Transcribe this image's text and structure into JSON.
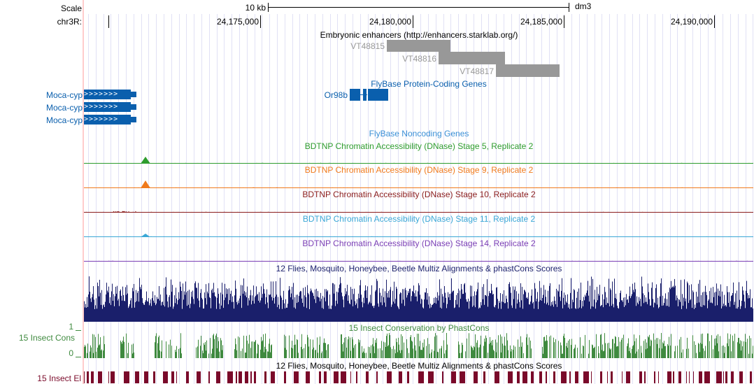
{
  "colors": {
    "grid": "#e1e1f5",
    "gene_blue": "#0a5fad",
    "enhancer_gray": "#989898",
    "stage5": "#2e9c2e",
    "stage9": "#f07a1c",
    "stage10": "#8a1c1c",
    "stage11": "#3aa7d6",
    "stage14": "#7b3fb5",
    "multiz": "#1a1f6b",
    "phastcons": "#3f8a3f",
    "elements": "#7a0a2a",
    "red_guide": "#ffcccc"
  },
  "ruler": {
    "scale_label": "Scale",
    "chrom_label": "chr3R:",
    "scale_bar_text": "10 kb",
    "assembly": "dm3",
    "positions": [
      "24,175,000",
      "24,180,000",
      "24,185,000",
      "24,190,000"
    ]
  },
  "tracks": {
    "enhancers": {
      "title": "Embryonic enhancers (http://enhancers.starklab.org/)",
      "items": [
        "VT48815",
        "VT48816",
        "VT48817"
      ]
    },
    "protein_coding": {
      "title": "FlyBase Protein-Coding Genes",
      "left_genes": [
        "Moca-cyp",
        "Moca-cyp",
        "Moca-cyp"
      ],
      "gene": "Or98b"
    },
    "noncoding": {
      "title": "FlyBase Noncoding Genes"
    },
    "dnase": [
      {
        "key": "s5",
        "title": "BDTNP Chromatin Accessibility (DNase) Stage 5, Replicate 2",
        "color": "#2e9c2e"
      },
      {
        "key": "s9",
        "title": "BDTNP Chromatin Accessibility (DNase) Stage 9, Replicate 2",
        "color": "#f07a1c"
      },
      {
        "key": "s10",
        "title": "BDTNP Chromatin Accessibility (DNase) Stage 10, Replicate 2",
        "color": "#8a1c1c"
      },
      {
        "key": "s11",
        "title": "BDTNP Chromatin Accessibility (DNase) Stage 11, Replicate 2",
        "color": "#3aa7d6"
      },
      {
        "key": "s14",
        "title": "BDTNP Chromatin Accessibility (DNase) Stage 14, Replicate 2",
        "color": "#7b3fb5"
      }
    ],
    "multiz": {
      "title": "12 Flies, Mosquito, Honeybee, Beetle Multiz Alignments & phastCons Scores"
    },
    "phastcons": {
      "title": "15 Insect Conservation by PhastCons",
      "side_label": "15 Insect Cons",
      "y_max": "1",
      "y_min": "0"
    },
    "elements": {
      "title": "12 Flies, Mosquito, Honeybee, Beetle Multiz Alignments & phastCons Scores",
      "side_label": "15 Insect El"
    }
  }
}
